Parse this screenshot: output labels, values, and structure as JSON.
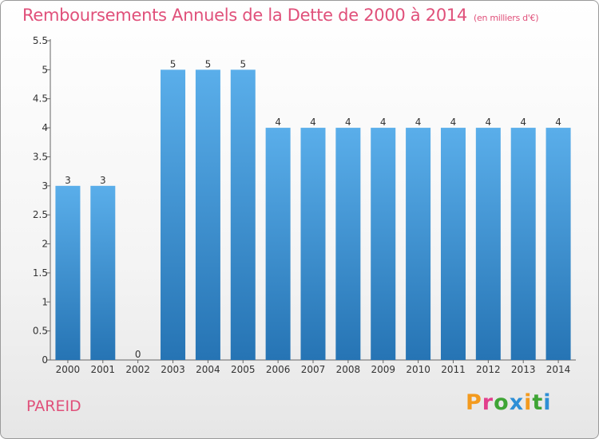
{
  "chart_data": {
    "type": "bar",
    "title": "Remboursements Annuels de la Dette de 2000 à 2014",
    "subtitle": "(en milliers d'€)",
    "categories": [
      "2000",
      "2001",
      "2002",
      "2003",
      "2004",
      "2005",
      "2006",
      "2007",
      "2008",
      "2009",
      "2010",
      "2011",
      "2012",
      "2013",
      "2014"
    ],
    "values": [
      3,
      3,
      0,
      5,
      5,
      5,
      4,
      4,
      4,
      4,
      4,
      4,
      4,
      4,
      4
    ],
    "data_labels": [
      "3",
      "3",
      "0",
      "5",
      "5",
      "5",
      "4",
      "4",
      "4",
      "4",
      "4",
      "4",
      "4",
      "4",
      "4"
    ],
    "ylim": [
      0,
      5.5
    ],
    "yticks": [
      0,
      0.5,
      1,
      1.5,
      2,
      2.5,
      3,
      3.5,
      4,
      4.5,
      5,
      5.5
    ],
    "ytick_labels": [
      "0",
      "0.5",
      "1",
      "1.5",
      "2",
      "2.5",
      "3",
      "3.5",
      "4",
      "4.5",
      "5",
      "5.5"
    ],
    "grid": false,
    "bar_color_top": "#5aaeea",
    "bar_color_bottom": "#2674b4"
  },
  "commune": "PAREID",
  "brand": {
    "text": "Proxiti",
    "letter_colors": [
      "#f39a1e",
      "#e23f8c",
      "#3fa535",
      "#2e8fd6",
      "#f39a1e",
      "#3fa535",
      "#2e8fd6"
    ]
  },
  "colors": {
    "title": "#e0507a",
    "axis": "#666666",
    "tick_text": "#333333"
  }
}
